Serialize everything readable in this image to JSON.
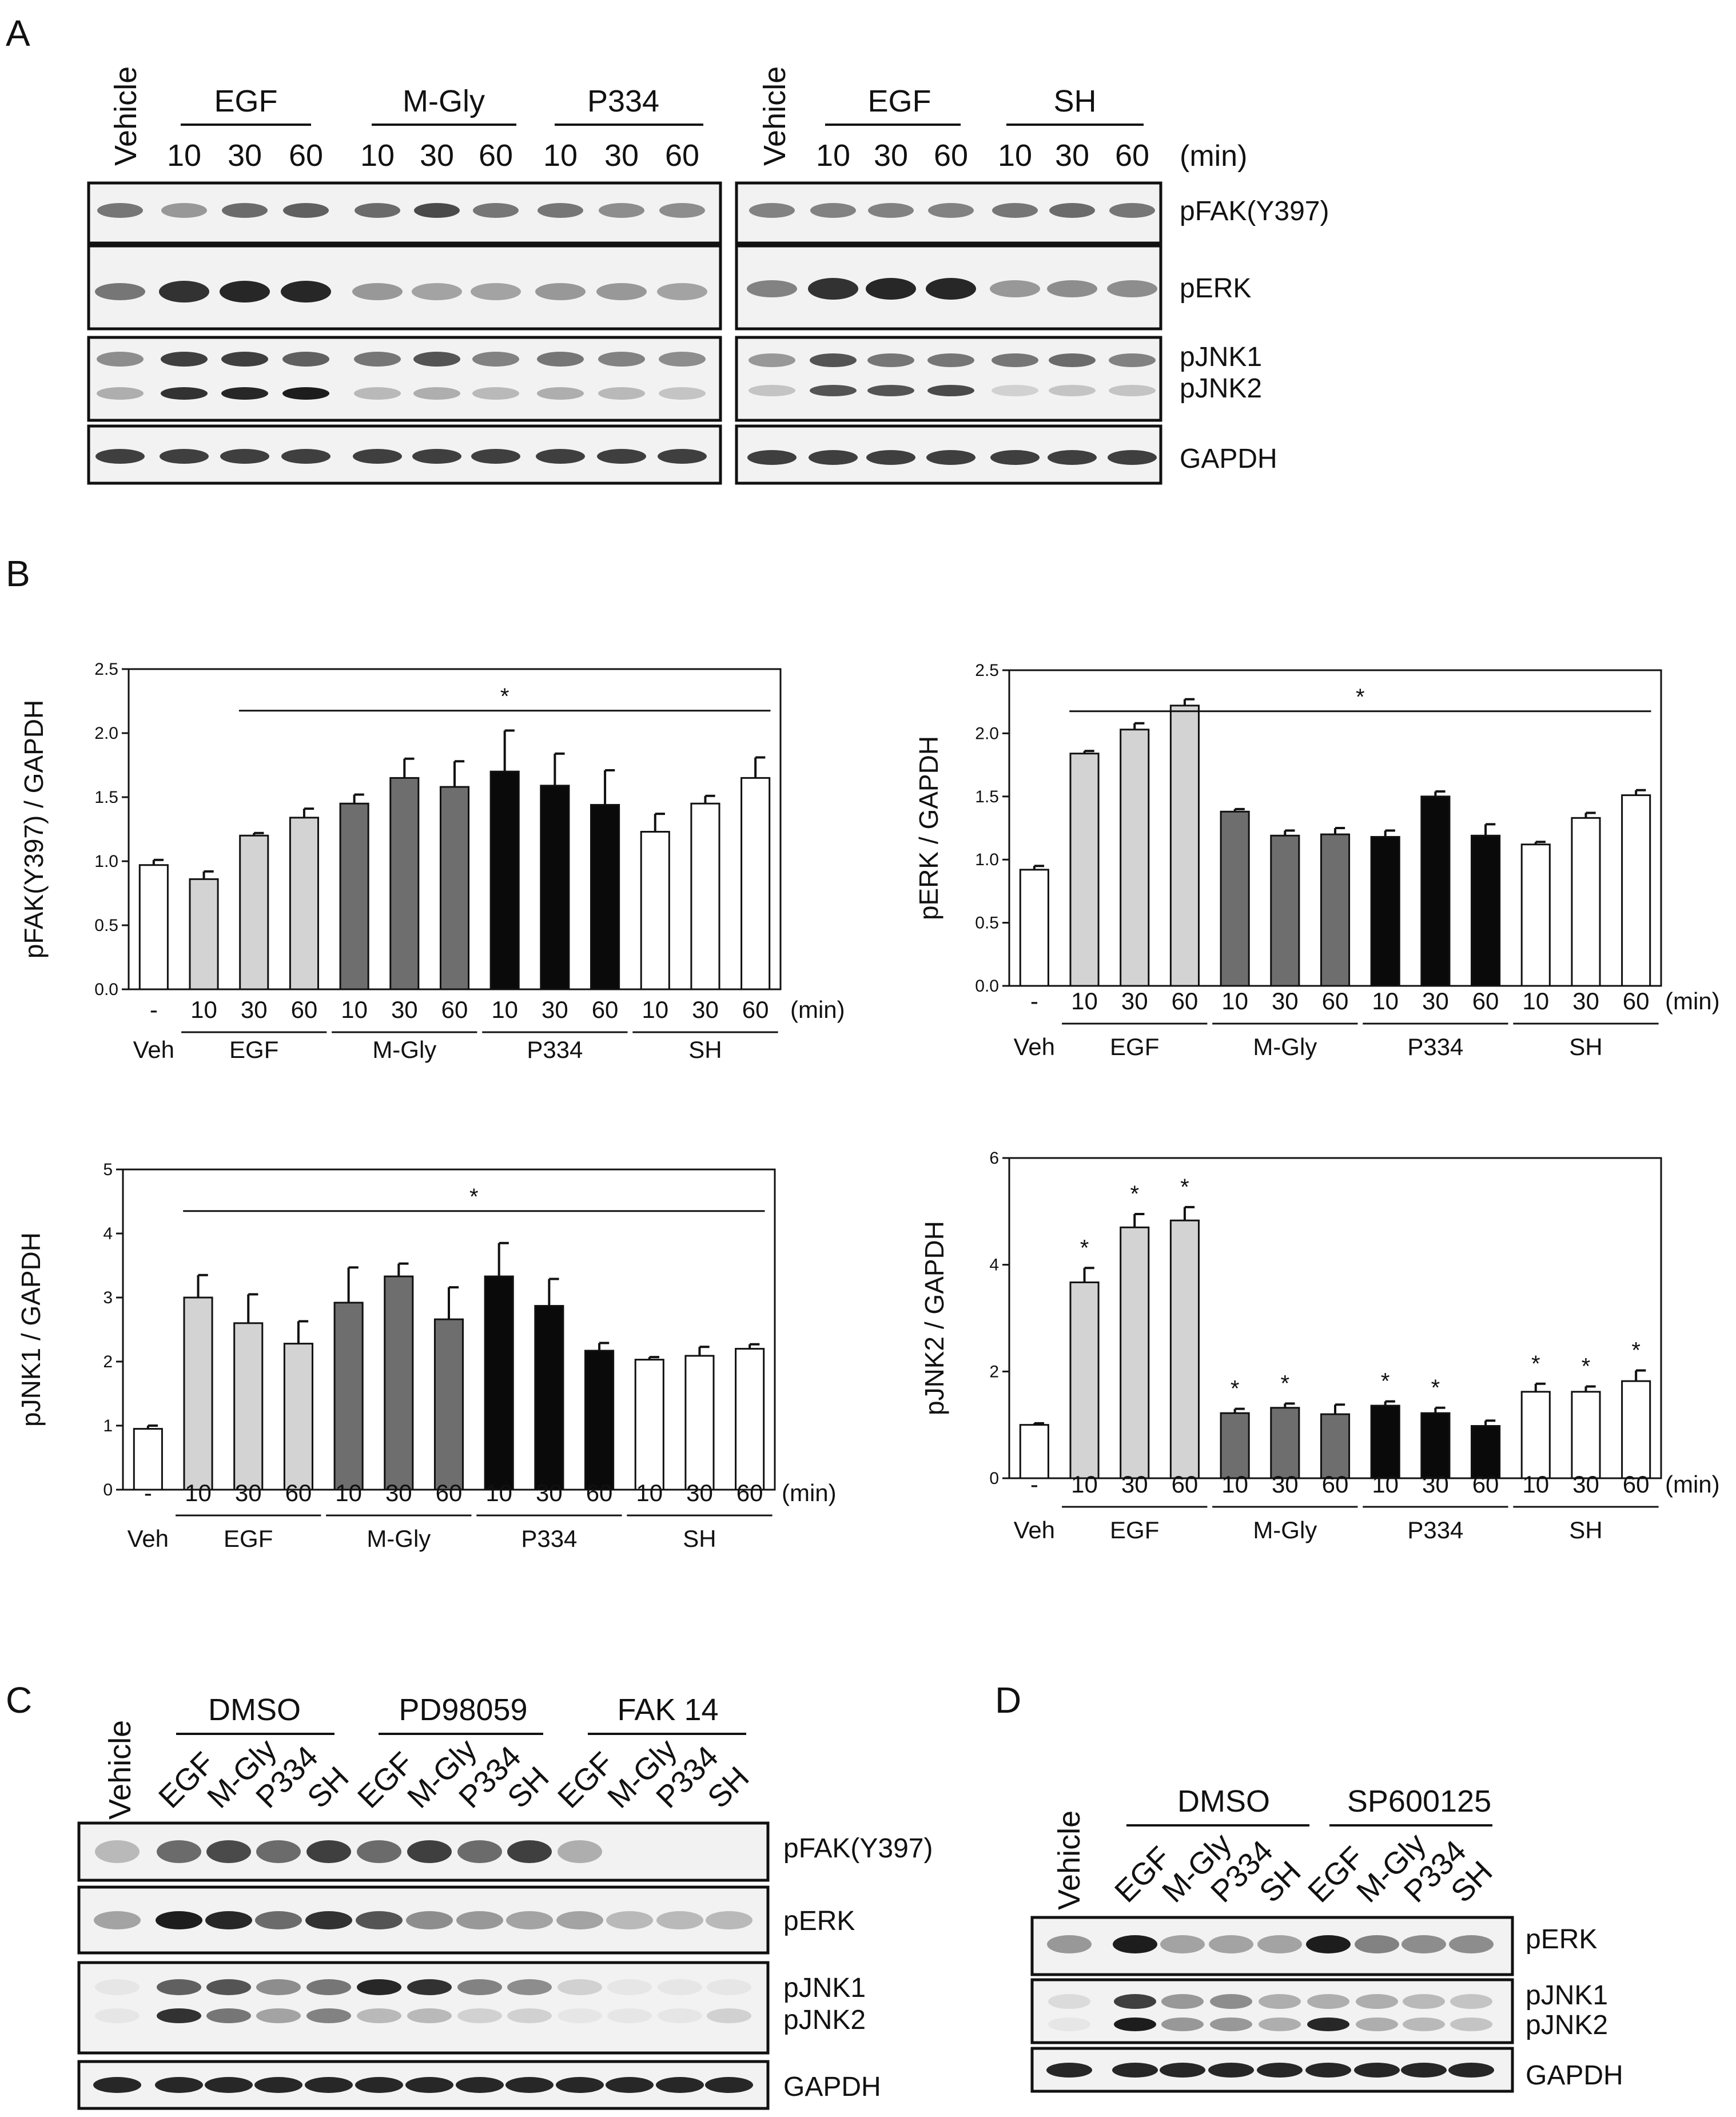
{
  "panels": {
    "A": {
      "label": "A",
      "blotL": {
        "vehicle": "Vehicle",
        "groups": [
          "EGF",
          "M-Gly",
          "P334"
        ],
        "times": [
          "10",
          "30",
          "60"
        ],
        "min_label": "(min)",
        "bands": [
          "pFAK(Y397)",
          "pERK",
          "pJNK1",
          "pJNK2",
          "GAPDH"
        ]
      },
      "blotR": {
        "vehicle": "Vehicle",
        "groups": [
          "EGF",
          "SH"
        ],
        "times": [
          "10",
          "30",
          "60"
        ],
        "min_label": "(min)"
      }
    },
    "B": {
      "label": "B"
    },
    "C": {
      "label": "C",
      "vehicle": "Vehicle",
      "groups": [
        "DMSO",
        "PD98059",
        "FAK 14"
      ],
      "lanes": [
        "EGF",
        "M-Gly",
        "P334",
        "SH"
      ],
      "bands": [
        "pFAK(Y397)",
        "pERK",
        "pJNK1",
        "pJNK2",
        "GAPDH"
      ]
    },
    "D": {
      "label": "D",
      "vehicle": "Vehicle",
      "groups": [
        "DMSO",
        "SP600125"
      ],
      "lanes": [
        "EGF",
        "M-Gly",
        "P334",
        "SH"
      ],
      "bands": [
        "pERK",
        "pJNK1",
        "pJNK2",
        "GAPDH"
      ]
    }
  },
  "colors": {
    "egf": "#d3d3d3",
    "mgly": "#6e6e6e",
    "p334": "#0a0a0a",
    "sh": "#ffffff",
    "veh": "#ffffff"
  },
  "chart_data": [
    {
      "type": "bar",
      "title": "",
      "ylabel": "pFAK(Y397) / GAPDH",
      "ylim": [
        0,
        2.5
      ],
      "yticks": [
        "0.0",
        "0.5",
        "1.0",
        "1.5",
        "2.0",
        "2.5"
      ],
      "x_ticks": [
        "-",
        "10",
        "30",
        "60",
        "10",
        "30",
        "60",
        "10",
        "30",
        "60",
        "10",
        "30",
        "60"
      ],
      "x_unit": "(min)",
      "groups": [
        "Veh",
        "EGF",
        "M-Gly",
        "P334",
        "SH"
      ],
      "values": [
        0.97,
        0.86,
        1.2,
        1.34,
        1.45,
        1.65,
        1.58,
        1.7,
        1.59,
        1.44,
        1.23,
        1.45,
        1.65
      ],
      "errors": [
        0.04,
        0.06,
        0.02,
        0.07,
        0.07,
        0.15,
        0.2,
        0.32,
        0.25,
        0.27,
        0.14,
        0.06,
        0.16
      ],
      "significance": "*",
      "sig_range": [
        2,
        12
      ],
      "star_bars": []
    },
    {
      "type": "bar",
      "title": "",
      "ylabel": "pERK / GAPDH",
      "ylim": [
        0,
        2.5
      ],
      "yticks": [
        "0.0",
        "0.5",
        "1.0",
        "1.5",
        "2.0",
        "2.5"
      ],
      "x_ticks": [
        "-",
        "10",
        "30",
        "60",
        "10",
        "30",
        "60",
        "10",
        "30",
        "60",
        "10",
        "30",
        "60"
      ],
      "x_unit": "(min)",
      "groups": [
        "Veh",
        "EGF",
        "M-Gly",
        "P334",
        "SH"
      ],
      "values": [
        0.92,
        1.84,
        2.03,
        2.22,
        1.38,
        1.19,
        1.2,
        1.18,
        1.5,
        1.19,
        1.12,
        1.33,
        1.51
      ],
      "errors": [
        0.03,
        0.02,
        0.05,
        0.05,
        0.02,
        0.04,
        0.05,
        0.05,
        0.04,
        0.09,
        0.02,
        0.04,
        0.04
      ],
      "significance": "*",
      "sig_range": [
        1,
        12
      ],
      "star_bars": []
    },
    {
      "type": "bar",
      "title": "",
      "ylabel": "pJNK1 / GAPDH",
      "ylim": [
        0,
        5
      ],
      "yticks": [
        "0",
        "1",
        "2",
        "3",
        "4",
        "5"
      ],
      "x_ticks": [
        "-",
        "10",
        "30",
        "60",
        "10",
        "30",
        "60",
        "10",
        "30",
        "60",
        "10",
        "30",
        "60"
      ],
      "x_unit": "(min)",
      "groups": [
        "Veh",
        "EGF",
        "M-Gly",
        "P334",
        "SH"
      ],
      "values": [
        0.95,
        3.0,
        2.6,
        2.28,
        2.92,
        3.33,
        2.66,
        3.33,
        2.87,
        2.17,
        2.03,
        2.09,
        2.2
      ],
      "errors": [
        0.05,
        0.35,
        0.45,
        0.35,
        0.55,
        0.2,
        0.5,
        0.52,
        0.42,
        0.12,
        0.04,
        0.14,
        0.07
      ],
      "significance": "*",
      "sig_range": [
        1,
        12
      ],
      "star_bars": []
    },
    {
      "type": "bar",
      "title": "",
      "ylabel": "pJNK2 / GAPDH",
      "ylim": [
        0,
        6
      ],
      "yticks": [
        "0",
        "2",
        "4",
        "6"
      ],
      "x_ticks": [
        "-",
        "10",
        "30",
        "60",
        "10",
        "30",
        "60",
        "10",
        "30",
        "60",
        "10",
        "30",
        "60"
      ],
      "x_unit": "(min)",
      "groups": [
        "Veh",
        "EGF",
        "M-Gly",
        "P334",
        "SH"
      ],
      "values": [
        1.0,
        3.67,
        4.7,
        4.83,
        1.22,
        1.32,
        1.2,
        1.36,
        1.22,
        0.98,
        1.62,
        1.62,
        1.82
      ],
      "errors": [
        0.03,
        0.27,
        0.25,
        0.25,
        0.08,
        0.08,
        0.18,
        0.08,
        0.1,
        0.1,
        0.15,
        0.1,
        0.2
      ],
      "significance": "*",
      "sig_range": [],
      "star_bars": [
        1,
        2,
        3,
        4,
        5,
        7,
        8,
        10,
        11,
        12
      ]
    }
  ]
}
